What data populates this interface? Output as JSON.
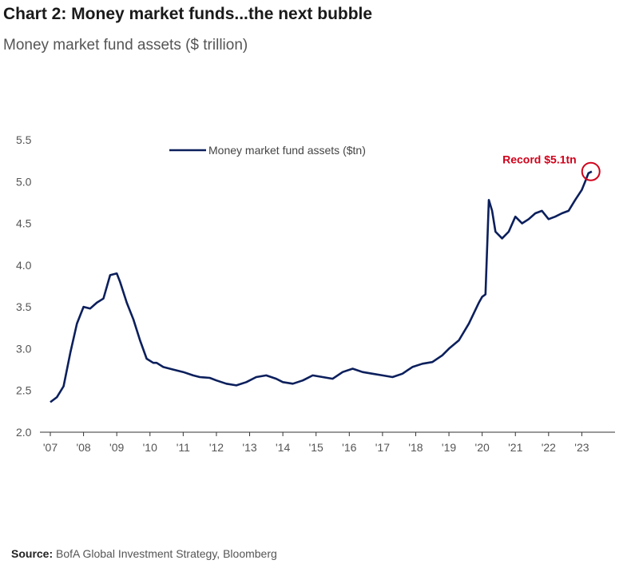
{
  "chart_data": {
    "type": "line",
    "title": "Chart 2: Money market funds...the next bubble",
    "subtitle": "Money market fund assets ($ trillion)",
    "xlabel": "",
    "ylabel": "",
    "ylim": [
      2.0,
      5.5
    ],
    "xlim": [
      2007,
      2024
    ],
    "yticks": [
      "2.0",
      "2.5",
      "3.0",
      "3.5",
      "4.0",
      "4.5",
      "5.0",
      "5.5"
    ],
    "xticks": [
      {
        "year": 2007,
        "label": "'07"
      },
      {
        "year": 2008,
        "label": "'08"
      },
      {
        "year": 2009,
        "label": "'09"
      },
      {
        "year": 2010,
        "label": "'10"
      },
      {
        "year": 2011,
        "label": "'11"
      },
      {
        "year": 2012,
        "label": "'12"
      },
      {
        "year": 2013,
        "label": "'13"
      },
      {
        "year": 2014,
        "label": "'14"
      },
      {
        "year": 2015,
        "label": "'15"
      },
      {
        "year": 2016,
        "label": "'16"
      },
      {
        "year": 2017,
        "label": "'17"
      },
      {
        "year": 2018,
        "label": "'18"
      },
      {
        "year": 2019,
        "label": "'19"
      },
      {
        "year": 2020,
        "label": "'20"
      },
      {
        "year": 2021,
        "label": "'21"
      },
      {
        "year": 2022,
        "label": "'22"
      },
      {
        "year": 2023,
        "label": "'23"
      }
    ],
    "legend": {
      "position": "top-center"
    },
    "series": [
      {
        "name": "Money market fund assets ($tn)",
        "color": "#0b1f5c",
        "x": [
          2007.0,
          2007.2,
          2007.4,
          2007.6,
          2007.8,
          2008.0,
          2008.2,
          2008.4,
          2008.6,
          2008.8,
          2009.0,
          2009.1,
          2009.3,
          2009.5,
          2009.7,
          2009.9,
          2010.1,
          2010.2,
          2010.4,
          2010.7,
          2011.0,
          2011.3,
          2011.5,
          2011.8,
          2012.0,
          2012.3,
          2012.6,
          2012.9,
          2013.2,
          2013.5,
          2013.8,
          2014.0,
          2014.3,
          2014.6,
          2014.9,
          2015.2,
          2015.5,
          2015.8,
          2016.1,
          2016.4,
          2016.7,
          2017.0,
          2017.3,
          2017.6,
          2017.9,
          2018.2,
          2018.5,
          2018.8,
          2019.0,
          2019.3,
          2019.6,
          2019.9,
          2020.0,
          2020.1,
          2020.2,
          2020.3,
          2020.4,
          2020.6,
          2020.8,
          2021.0,
          2021.2,
          2021.4,
          2021.6,
          2021.8,
          2022.0,
          2022.2,
          2022.4,
          2022.6,
          2022.8,
          2023.0,
          2023.1,
          2023.2,
          2023.3
        ],
        "values": [
          2.36,
          2.42,
          2.55,
          2.95,
          3.3,
          3.5,
          3.48,
          3.55,
          3.6,
          3.88,
          3.9,
          3.8,
          3.55,
          3.35,
          3.1,
          2.88,
          2.83,
          2.83,
          2.78,
          2.75,
          2.72,
          2.68,
          2.66,
          2.65,
          2.62,
          2.58,
          2.56,
          2.6,
          2.66,
          2.68,
          2.64,
          2.6,
          2.58,
          2.62,
          2.68,
          2.66,
          2.64,
          2.72,
          2.76,
          2.72,
          2.7,
          2.68,
          2.66,
          2.7,
          2.78,
          2.82,
          2.84,
          2.92,
          3.0,
          3.1,
          3.3,
          3.55,
          3.62,
          3.65,
          4.78,
          4.65,
          4.4,
          4.32,
          4.4,
          4.58,
          4.5,
          4.55,
          4.62,
          4.65,
          4.55,
          4.58,
          4.62,
          4.65,
          4.78,
          4.9,
          5.0,
          5.1,
          5.12
        ]
      }
    ],
    "annotation": {
      "text": "Record $5.1tn",
      "x": 2023.2,
      "y": 5.12,
      "color": "#d0021b"
    }
  },
  "source": {
    "label": "Source:",
    "text": "BofA Global Investment Strategy, Bloomberg"
  }
}
